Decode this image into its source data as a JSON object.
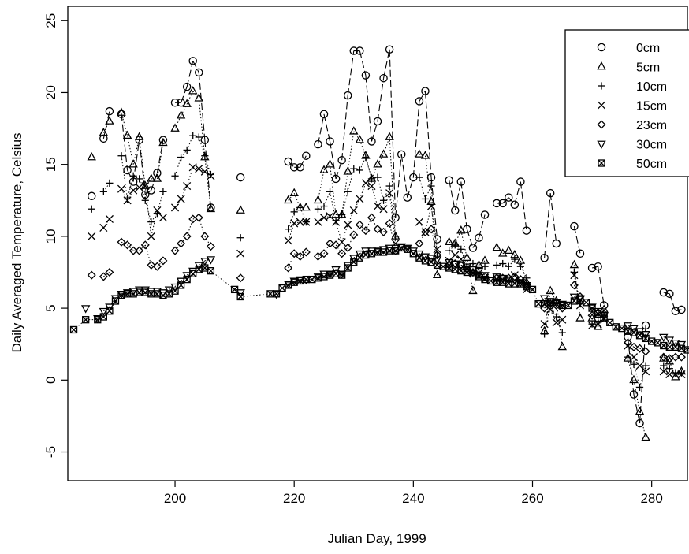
{
  "chart_data": {
    "type": "scatter",
    "title": "",
    "xlabel": "Julian Day, 1999",
    "ylabel": "Daily Averaged Temperature, Celsius",
    "xlim": [
      182,
      286
    ],
    "ylim": [
      -7,
      26
    ],
    "xticks": [
      200,
      220,
      240,
      260,
      280
    ],
    "yticks": [
      -5,
      0,
      5,
      10,
      15,
      20,
      25
    ],
    "grid": false,
    "legend_position": "top-right",
    "series": [
      {
        "name": "0cm",
        "marker": "circle",
        "x": [
          186,
          188,
          189,
          191,
          192,
          193,
          194,
          195,
          196,
          197,
          198,
          200,
          201,
          202,
          203,
          204,
          205,
          206,
          211,
          219,
          220,
          221,
          222,
          224,
          225,
          226,
          227,
          228,
          229,
          230,
          231,
          232,
          233,
          234,
          235,
          236,
          237,
          238,
          239,
          240,
          241,
          242,
          243,
          244,
          246,
          247,
          248,
          249,
          250,
          251,
          252,
          254,
          255,
          256,
          257,
          258,
          259,
          262,
          263,
          264,
          267,
          268,
          270,
          271,
          272,
          276,
          277,
          278,
          279,
          282,
          283,
          284,
          285
        ],
        "y": [
          12.8,
          16.8,
          18.7,
          18.5,
          14.6,
          13.8,
          16.7,
          12.9,
          13.2,
          14.4,
          16.7,
          19.3,
          19.3,
          20.4,
          22.2,
          21.4,
          16.7,
          12.0,
          14.1,
          15.2,
          14.8,
          14.8,
          15.6,
          16.4,
          18.5,
          16.6,
          14.0,
          15.3,
          19.8,
          22.9,
          22.9,
          21.2,
          16.6,
          18.0,
          21.0,
          23.0,
          11.3,
          15.7,
          12.7,
          14.1,
          19.4,
          20.1,
          14.1,
          9.8,
          13.9,
          11.8,
          13.8,
          10.5,
          9.2,
          9.9,
          11.5,
          12.3,
          12.3,
          12.7,
          12.2,
          13.8,
          10.4,
          8.5,
          13.0,
          9.5,
          10.7,
          8.8,
          7.8,
          7.9,
          5.2,
          3.0,
          -1.0,
          -3.0,
          3.8,
          6.1,
          6.0,
          4.8,
          4.9
        ]
      },
      {
        "name": "5cm",
        "marker": "triangle-up",
        "x": [
          186,
          188,
          189,
          191,
          192,
          193,
          194,
          195,
          196,
          197,
          198,
          200,
          201,
          202,
          203,
          204,
          205,
          206,
          211,
          219,
          220,
          221,
          222,
          224,
          225,
          226,
          227,
          228,
          229,
          230,
          231,
          232,
          233,
          234,
          235,
          236,
          237,
          241,
          242,
          243,
          244,
          246,
          247,
          248,
          249,
          250,
          251,
          252,
          254,
          255,
          256,
          257,
          258,
          259,
          262,
          263,
          264,
          265,
          267,
          268,
          270,
          271,
          272,
          276,
          277,
          278,
          279,
          282,
          283,
          284,
          285
        ],
        "y": [
          15.5,
          17.2,
          18.0,
          18.6,
          17.0,
          15.0,
          16.9,
          13.5,
          14.0,
          14.0,
          16.5,
          17.5,
          18.4,
          19.2,
          20.1,
          19.6,
          15.5,
          11.9,
          11.8,
          12.5,
          13.0,
          12.0,
          12.0,
          12.5,
          14.6,
          15.0,
          11.5,
          11.5,
          14.5,
          17.3,
          16.7,
          15.6,
          14.0,
          15.0,
          15.7,
          16.9,
          10.0,
          15.7,
          15.6,
          12.4,
          7.3,
          9.6,
          9.5,
          10.4,
          8.5,
          6.2,
          8.0,
          8.3,
          9.2,
          8.8,
          9.0,
          8.7,
          8.3,
          6.8,
          3.4,
          6.2,
          5.5,
          2.3,
          8.0,
          4.3,
          4.3,
          3.7,
          4.9,
          1.5,
          0.0,
          -2.2,
          -4.0,
          1.5,
          1.3,
          0.2,
          0.6
        ]
      },
      {
        "name": "10cm",
        "marker": "plus",
        "x": [
          186,
          188,
          189,
          191,
          192,
          193,
          194,
          195,
          196,
          197,
          198,
          200,
          201,
          202,
          203,
          204,
          205,
          206,
          211,
          219,
          220,
          221,
          222,
          224,
          225,
          226,
          227,
          228,
          229,
          230,
          231,
          232,
          233,
          234,
          235,
          236,
          237,
          241,
          242,
          243,
          244,
          246,
          247,
          248,
          249,
          250,
          251,
          252,
          254,
          255,
          256,
          257,
          258,
          259,
          262,
          263,
          264,
          265,
          267,
          268,
          270,
          271,
          272,
          276,
          277,
          278,
          279,
          282,
          283,
          284,
          285
        ],
        "y": [
          11.9,
          13.1,
          13.7,
          15.6,
          12.6,
          14.2,
          14.0,
          12.5,
          11.0,
          11.6,
          13.1,
          14.2,
          15.5,
          16.0,
          17.0,
          16.9,
          15.6,
          14.3,
          9.9,
          10.5,
          11.7,
          12.0,
          11.0,
          11.9,
          12.1,
          13.1,
          11.1,
          11.5,
          13.1,
          14.7,
          14.6,
          15.5,
          14.0,
          14.1,
          12.5,
          13.5,
          10.0,
          14.1,
          12.6,
          13.5,
          8.7,
          9.0,
          9.4,
          9.1,
          7.9,
          8.1,
          7.8,
          7.9,
          8.0,
          8.1,
          7.9,
          8.4,
          7.9,
          7.1,
          3.2,
          5.2,
          4.4,
          3.3,
          7.5,
          5.3,
          3.9,
          4.1,
          4.5,
          1.6,
          1.1,
          -0.5,
          1.0,
          1.0,
          0.8,
          0.5,
          0.5
        ]
      },
      {
        "name": "15cm",
        "marker": "cross",
        "x": [
          186,
          188,
          189,
          191,
          192,
          193,
          194,
          195,
          196,
          197,
          198,
          200,
          201,
          202,
          203,
          204,
          205,
          206,
          211,
          219,
          220,
          221,
          222,
          224,
          225,
          226,
          227,
          228,
          229,
          230,
          231,
          232,
          233,
          234,
          235,
          236,
          237,
          241,
          242,
          243,
          244,
          246,
          247,
          248,
          249,
          250,
          251,
          252,
          254,
          255,
          256,
          257,
          258,
          259,
          262,
          263,
          264,
          265,
          267,
          268,
          270,
          271,
          272,
          276,
          277,
          278,
          279,
          282,
          283,
          284,
          285
        ],
        "y": [
          10.0,
          10.6,
          11.2,
          13.3,
          12.5,
          13.2,
          13.4,
          13.5,
          10.0,
          11.8,
          11.3,
          12.0,
          12.6,
          13.5,
          14.8,
          14.7,
          14.5,
          14.2,
          8.8,
          9.7,
          10.9,
          11.0,
          11.0,
          11.0,
          11.3,
          11.4,
          11.0,
          9.6,
          10.8,
          11.8,
          12.6,
          13.7,
          13.5,
          12.1,
          11.9,
          13.0,
          9.5,
          11.0,
          10.3,
          12.1,
          9.1,
          8.3,
          8.7,
          8.4,
          7.8,
          7.5,
          7.3,
          7.1,
          7.0,
          7.0,
          7.0,
          7.3,
          6.9,
          6.3,
          3.9,
          4.9,
          4.0,
          4.2,
          7.3,
          5.2,
          3.8,
          3.9,
          4.2,
          2.4,
          1.6,
          1.0,
          0.6,
          0.6,
          0.4,
          0.4,
          0.4
        ]
      },
      {
        "name": "23cm",
        "marker": "diamond",
        "x": [
          186,
          188,
          189,
          191,
          192,
          193,
          194,
          195,
          196,
          197,
          198,
          200,
          201,
          202,
          203,
          204,
          205,
          206,
          211,
          219,
          220,
          221,
          222,
          224,
          225,
          226,
          227,
          228,
          229,
          230,
          231,
          232,
          233,
          234,
          235,
          236,
          237,
          241,
          242,
          243,
          244,
          246,
          247,
          248,
          249,
          250,
          251,
          252,
          254,
          255,
          256,
          257,
          258,
          259,
          262,
          263,
          264,
          265,
          267,
          268,
          270,
          271,
          272,
          276,
          277,
          278,
          279,
          282,
          283,
          284,
          285
        ],
        "y": [
          7.3,
          7.2,
          7.5,
          9.6,
          9.4,
          9.0,
          9.0,
          9.4,
          8.0,
          7.9,
          8.3,
          9.0,
          9.5,
          10.0,
          11.2,
          11.3,
          10.0,
          9.3,
          7.1,
          7.8,
          8.8,
          8.6,
          8.9,
          8.6,
          8.8,
          9.5,
          9.4,
          8.8,
          9.2,
          10.1,
          10.8,
          10.4,
          11.3,
          10.5,
          10.3,
          10.9,
          9.0,
          9.5,
          10.3,
          10.5,
          8.7,
          8.0,
          8.1,
          8.0,
          7.7,
          7.5,
          7.3,
          7.2,
          7.1,
          7.1,
          7.1,
          7.2,
          7.0,
          6.6,
          5.0,
          5.3,
          5.2,
          5.0,
          6.6,
          5.8,
          4.5,
          4.7,
          4.6,
          2.6,
          2.3,
          2.2,
          2.0,
          1.6,
          1.5,
          1.6,
          1.6
        ]
      },
      {
        "name": "30cm",
        "marker": "triangle-down",
        "x": [
          185,
          187,
          188,
          189,
          190,
          191,
          192,
          193,
          194,
          195,
          196,
          197,
          198,
          199,
          200,
          201,
          202,
          203,
          204,
          205,
          206,
          211,
          217,
          219,
          220,
          221,
          222,
          224,
          225,
          226,
          227,
          228,
          229,
          230,
          231,
          232,
          233,
          234,
          235,
          236,
          237,
          238,
          239,
          240,
          241,
          242,
          243,
          244,
          246,
          247,
          248,
          249,
          250,
          251,
          252,
          254,
          255,
          256,
          257,
          258,
          259,
          262,
          263,
          264,
          265,
          267,
          268,
          270,
          271,
          272,
          276,
          277,
          278,
          279,
          282,
          283,
          284,
          285
        ],
        "y": [
          5.0,
          4.3,
          4.8,
          5.1,
          5.7,
          6.0,
          6.1,
          6.2,
          6.3,
          6.3,
          6.2,
          6.2,
          6.1,
          6.3,
          6.5,
          6.9,
          7.3,
          7.6,
          8.0,
          8.3,
          8.4,
          6.1,
          6.0,
          6.7,
          6.9,
          7.0,
          7.0,
          7.2,
          7.4,
          7.4,
          7.7,
          7.4,
          8.0,
          8.5,
          8.8,
          9.0,
          9.0,
          9.0,
          9.1,
          9.2,
          9.2,
          9.3,
          9.2,
          9.0,
          8.8,
          8.6,
          8.5,
          8.4,
          8.2,
          8.1,
          8.0,
          7.9,
          7.7,
          7.6,
          7.3,
          7.2,
          7.1,
          7.0,
          7.0,
          6.8,
          6.6,
          5.7,
          5.5,
          5.4,
          5.3,
          5.8,
          5.7,
          5.1,
          4.8,
          4.5,
          3.8,
          3.6,
          3.4,
          3.2,
          3.0,
          2.8,
          2.6,
          2.5
        ]
      },
      {
        "name": "50cm",
        "marker": "boxed-x",
        "x": [
          183,
          185,
          187,
          188,
          189,
          190,
          191,
          192,
          193,
          194,
          195,
          196,
          197,
          198,
          199,
          200,
          201,
          202,
          203,
          204,
          205,
          206,
          210,
          211,
          216,
          217,
          218,
          219,
          220,
          221,
          222,
          223,
          224,
          225,
          226,
          227,
          228,
          229,
          230,
          231,
          232,
          233,
          234,
          235,
          236,
          237,
          238,
          239,
          240,
          241,
          242,
          243,
          244,
          245,
          246,
          247,
          248,
          249,
          250,
          251,
          252,
          253,
          254,
          255,
          256,
          257,
          258,
          259,
          260,
          261,
          262,
          263,
          264,
          265,
          266,
          267,
          268,
          269,
          270,
          271,
          272,
          273,
          274,
          275,
          276,
          277,
          278,
          279,
          280,
          281,
          282,
          283,
          284,
          285,
          286
        ],
        "y": [
          3.5,
          4.2,
          4.2,
          4.4,
          4.8,
          5.5,
          5.9,
          6.0,
          6.0,
          6.1,
          6.1,
          6.0,
          6.0,
          5.9,
          6.0,
          6.2,
          6.6,
          7.0,
          7.4,
          7.7,
          7.8,
          7.6,
          6.3,
          5.8,
          6.0,
          6.0,
          6.4,
          6.6,
          6.8,
          6.9,
          7.0,
          7.0,
          7.1,
          7.2,
          7.3,
          7.4,
          7.3,
          7.8,
          8.2,
          8.5,
          8.7,
          8.8,
          8.9,
          8.9,
          9.0,
          9.0,
          9.2,
          9.1,
          8.8,
          8.5,
          8.3,
          8.2,
          8.0,
          7.9,
          7.8,
          7.7,
          7.6,
          7.5,
          7.4,
          7.2,
          7.0,
          6.9,
          6.8,
          6.8,
          6.7,
          6.7,
          6.7,
          6.5,
          6.3,
          5.3,
          5.3,
          5.4,
          5.3,
          5.2,
          5.2,
          5.5,
          5.6,
          5.4,
          5.0,
          4.6,
          4.3,
          4.0,
          3.7,
          3.6,
          3.4,
          3.3,
          3.1,
          2.9,
          2.7,
          2.6,
          2.4,
          2.3,
          2.3,
          2.2,
          2.1
        ]
      }
    ]
  }
}
